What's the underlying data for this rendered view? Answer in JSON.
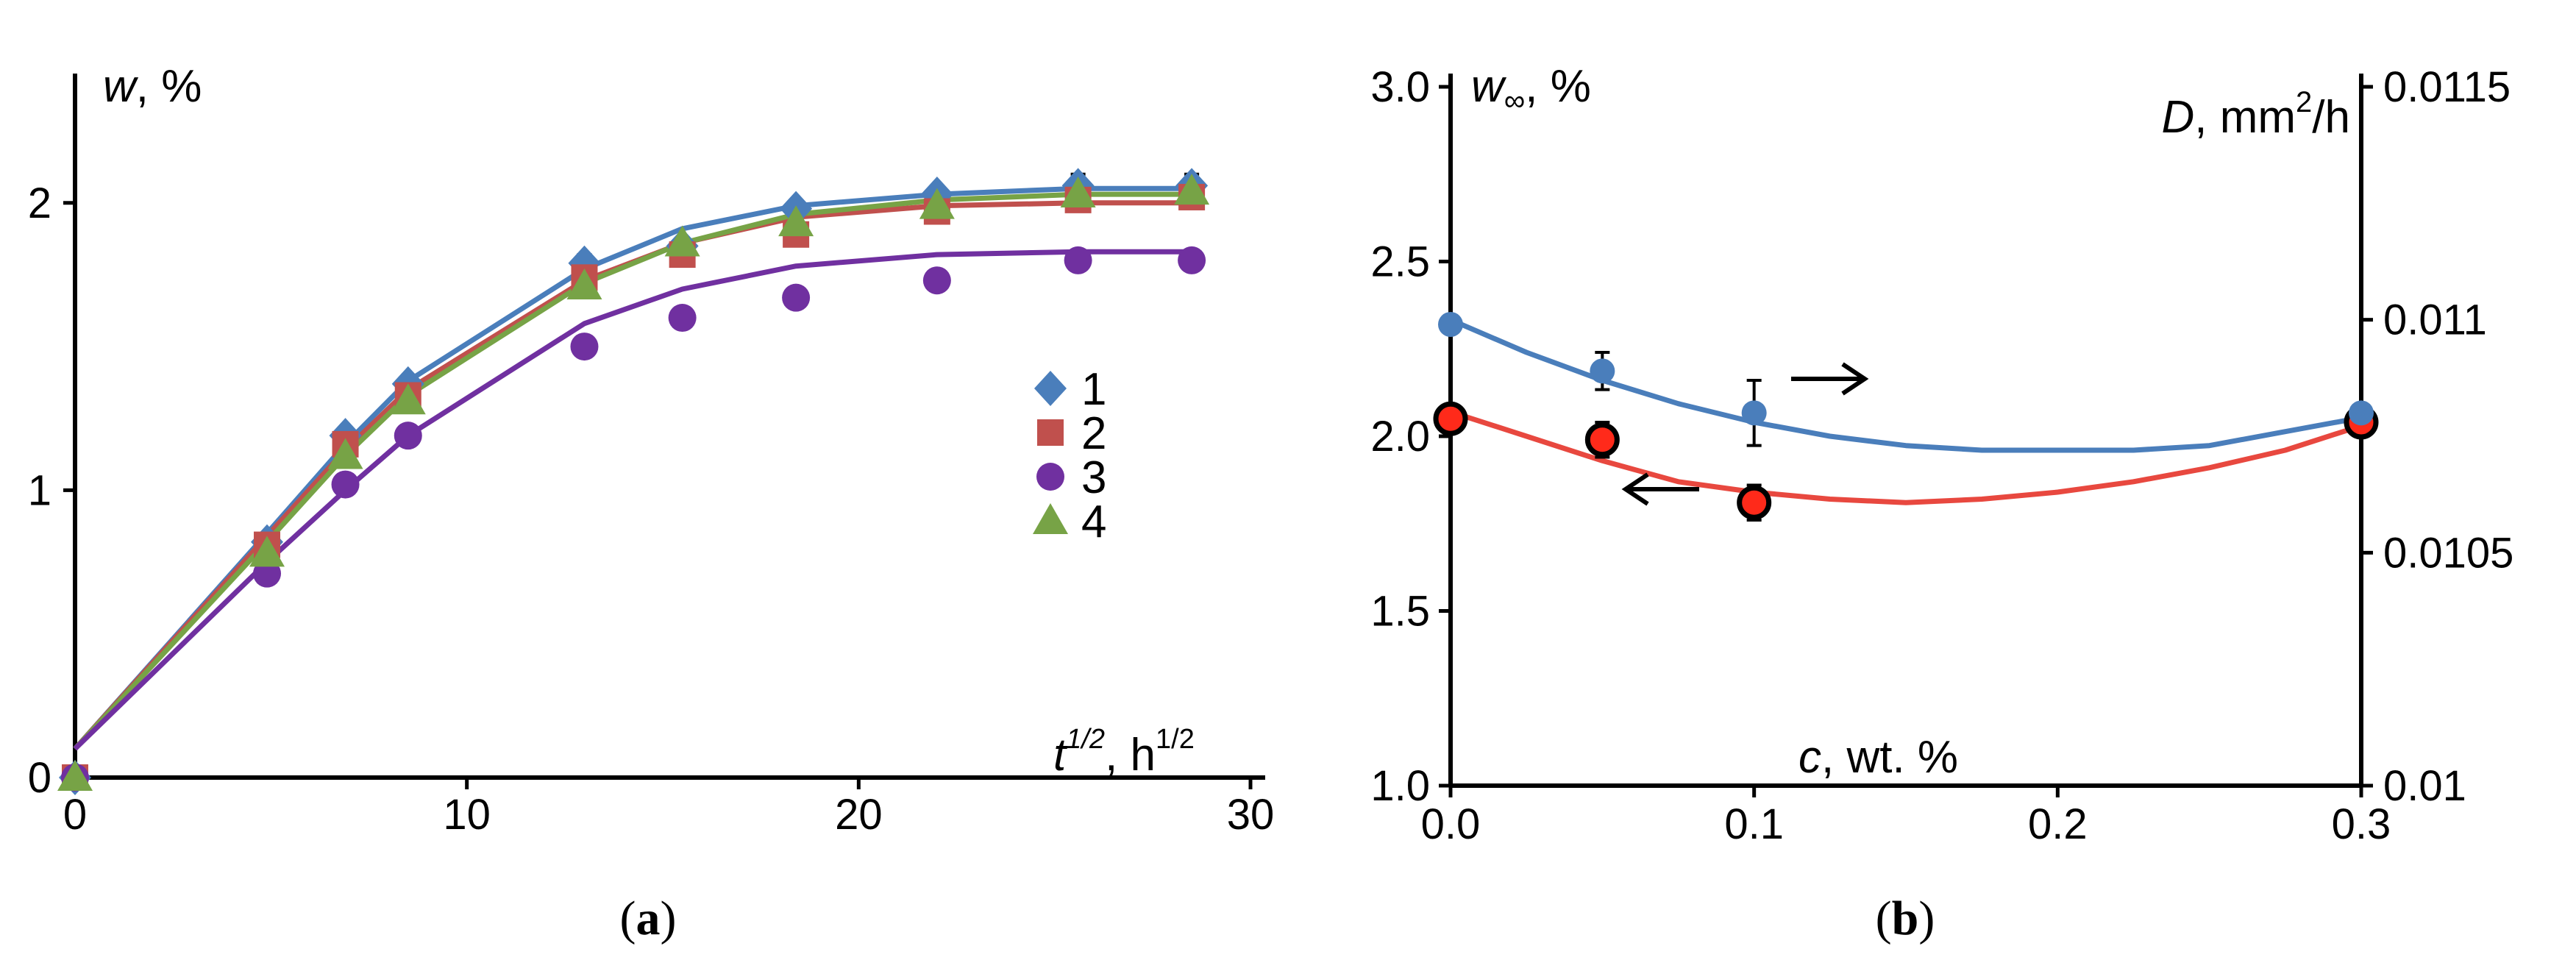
{
  "colors": {
    "s1": "#4a7ebb",
    "s2": "#c0504d",
    "s3": "#7030a0",
    "s4": "#77a346",
    "blue": "#4a7ebb",
    "red": "#e8483f",
    "redfill": "#ff2a1a",
    "axis": "#000000"
  },
  "chart_data": [
    {
      "id": "a",
      "type": "scatter",
      "caption_open": "(",
      "caption_letter": "a",
      "caption_close": ")",
      "ylabel_var": "w",
      "ylabel_unit": ", %",
      "xlabel_var": "t",
      "xlabel_sup": "1/2",
      "xlabel_unit": ", h",
      "xlabel_unit_sup": "1/2",
      "xlim": [
        0,
        30
      ],
      "ylim": [
        0,
        2.45
      ],
      "xticks": [
        0,
        10,
        20,
        30
      ],
      "yticks": [
        0,
        1,
        2
      ],
      "legend_position": "right-middle",
      "series": [
        {
          "name": "1",
          "marker": "diamond",
          "color_key": "s1",
          "x": [
            0,
            4.9,
            6.9,
            8.5,
            13,
            15.5,
            18.4,
            22,
            25.6,
            28.5
          ],
          "y": [
            0,
            0.82,
            1.19,
            1.37,
            1.79,
            1.85,
            1.98,
            2.03,
            2.06,
            2.06
          ],
          "err": [
            0,
            0,
            0,
            0,
            0.03,
            0,
            0,
            0.02,
            0.04,
            0.04
          ],
          "fit_x": [
            0,
            4.9,
            6.9,
            8.5,
            13,
            15.5,
            18.4,
            22,
            25.6,
            28.5
          ],
          "fit_y": [
            0.1,
            0.85,
            1.16,
            1.38,
            1.77,
            1.91,
            1.99,
            2.03,
            2.05,
            2.05
          ]
        },
        {
          "name": "2",
          "marker": "square",
          "color_key": "s2",
          "x": [
            0,
            4.9,
            6.9,
            8.5,
            13,
            15.5,
            18.4,
            22,
            25.6,
            28.5
          ],
          "y": [
            0,
            0.81,
            1.16,
            1.33,
            1.74,
            1.82,
            1.89,
            1.97,
            2.01,
            2.02
          ],
          "err": [
            0,
            0,
            0,
            0,
            0,
            0,
            0,
            0,
            0,
            0
          ],
          "fit_x": [
            0,
            4.9,
            6.9,
            8.5,
            13,
            15.5,
            18.4,
            22,
            25.6,
            28.5
          ],
          "fit_y": [
            0.1,
            0.84,
            1.14,
            1.35,
            1.73,
            1.86,
            1.95,
            1.99,
            2.0,
            2.0
          ]
        },
        {
          "name": "3",
          "marker": "circle",
          "color_key": "s3",
          "x": [
            0,
            4.9,
            6.9,
            8.5,
            13,
            15.5,
            18.4,
            22,
            25.6,
            28.5
          ],
          "y": [
            0,
            0.71,
            1.02,
            1.19,
            1.5,
            1.6,
            1.67,
            1.73,
            1.8,
            1.8
          ],
          "err": [
            0,
            0,
            0,
            0,
            0,
            0,
            0,
            0,
            0,
            0
          ],
          "fit_x": [
            0,
            4.9,
            6.9,
            8.5,
            13,
            15.5,
            18.4,
            22,
            25.6,
            28.5
          ],
          "fit_y": [
            0.1,
            0.75,
            1.0,
            1.19,
            1.58,
            1.7,
            1.78,
            1.82,
            1.83,
            1.83
          ]
        },
        {
          "name": "4",
          "marker": "triangle",
          "color_key": "s4",
          "x": [
            0,
            4.9,
            6.9,
            8.5,
            13,
            15.5,
            18.4,
            22,
            25.6,
            28.5
          ],
          "y": [
            0,
            0.78,
            1.12,
            1.31,
            1.71,
            1.86,
            1.93,
            1.99,
            2.03,
            2.04
          ],
          "err": [
            0,
            0,
            0,
            0,
            0,
            0,
            0,
            0,
            0,
            0
          ],
          "fit_x": [
            0,
            4.9,
            6.9,
            8.5,
            13,
            15.5,
            18.4,
            22,
            25.6,
            28.5
          ],
          "fit_y": [
            0.1,
            0.82,
            1.12,
            1.33,
            1.72,
            1.86,
            1.96,
            2.01,
            2.03,
            2.03
          ]
        }
      ]
    },
    {
      "id": "b",
      "type": "scatter",
      "caption_open": "(",
      "caption_letter": "b",
      "caption_close": ")",
      "ylabel_var": "w",
      "ylabel_sub": "∞",
      "ylabel_unit": ", %",
      "y2label_var": "D",
      "y2label_unit": ", mm",
      "y2label_unit_sup": "2",
      "y2label_tail": "/h",
      "xlabel_var": "c",
      "xlabel_unit": ", wt. %",
      "xlim": [
        0,
        0.3
      ],
      "ylim": [
        1.0,
        3.0
      ],
      "y2lim": [
        0.01,
        0.0115
      ],
      "xticks": [
        "0.0",
        "0.1",
        "0.2",
        "0.3"
      ],
      "yticks": [
        "1.0",
        "1.5",
        "2.0",
        "2.5",
        "3.0"
      ],
      "y2ticks": [
        "0.01",
        "0.0105",
        "0.011",
        "0.0115"
      ],
      "series": [
        {
          "name": "w∞",
          "axis": "left",
          "color_key": "red",
          "x": [
            0,
            0.05,
            0.1,
            0.3
          ],
          "y": [
            2.05,
            1.99,
            1.81,
            2.04
          ],
          "err": [
            0.03,
            0.05,
            0.05,
            0.0
          ],
          "fit_x": [
            0,
            0.025,
            0.05,
            0.075,
            0.1,
            0.125,
            0.15,
            0.175,
            0.2,
            0.225,
            0.25,
            0.275,
            0.3
          ],
          "fit_y": [
            2.07,
            2.0,
            1.93,
            1.87,
            1.84,
            1.82,
            1.81,
            1.82,
            1.84,
            1.87,
            1.91,
            1.96,
            2.03
          ],
          "arrow": "left"
        },
        {
          "name": "D",
          "axis": "right",
          "color_key": "blue",
          "x": [
            0,
            0.05,
            0.1,
            0.3
          ],
          "y": [
            0.01099,
            0.01089,
            0.0108,
            0.0108
          ],
          "err": [
            0.0,
            4e-05,
            7e-05,
            0.0
          ],
          "fit_x": [
            0,
            0.025,
            0.05,
            0.075,
            0.1,
            0.125,
            0.15,
            0.175,
            0.2,
            0.225,
            0.25,
            0.275,
            0.3
          ],
          "fit_y": [
            0.011,
            0.01093,
            0.01087,
            0.01082,
            0.01078,
            0.01075,
            0.01073,
            0.01072,
            0.01072,
            0.01072,
            0.01073,
            0.01076,
            0.01079
          ],
          "arrow": "right"
        }
      ]
    }
  ]
}
